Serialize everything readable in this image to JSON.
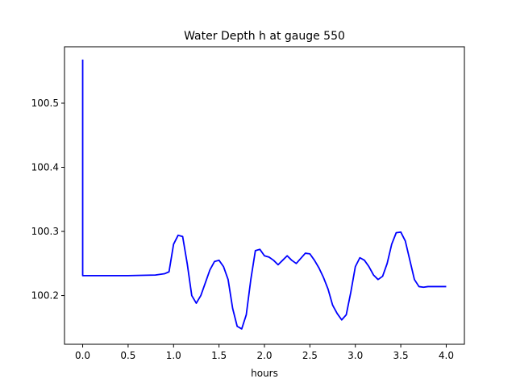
{
  "chart_data": {
    "type": "line",
    "title": "Water Depth h at gauge 550",
    "xlabel": "hours",
    "ylabel": "",
    "xlim": [
      -0.2,
      4.2
    ],
    "ylim": [
      100.124,
      100.588
    ],
    "xticks": [
      0.0,
      0.5,
      1.0,
      1.5,
      2.0,
      2.5,
      3.0,
      3.5,
      4.0
    ],
    "xtick_labels": [
      "0.0",
      "0.5",
      "1.0",
      "1.5",
      "2.0",
      "2.5",
      "3.0",
      "3.5",
      "4.0"
    ],
    "yticks": [
      100.2,
      100.3,
      100.4,
      100.5
    ],
    "ytick_labels": [
      "100.2",
      "100.3",
      "100.4",
      "100.5"
    ],
    "grid": false,
    "color": "#0000ff",
    "series": [
      {
        "name": "",
        "x": [
          0.0,
          0.0,
          0.0,
          0.5,
          0.8,
          0.9,
          0.95,
          1.0,
          1.05,
          1.1,
          1.15,
          1.2,
          1.25,
          1.3,
          1.35,
          1.4,
          1.45,
          1.5,
          1.55,
          1.6,
          1.65,
          1.7,
          1.75,
          1.8,
          1.85,
          1.9,
          1.95,
          2.0,
          2.05,
          2.1,
          2.15,
          2.2,
          2.25,
          2.3,
          2.35,
          2.4,
          2.45,
          2.5,
          2.55,
          2.6,
          2.65,
          2.7,
          2.75,
          2.8,
          2.85,
          2.9,
          2.95,
          3.0,
          3.05,
          3.1,
          3.15,
          3.2,
          3.25,
          3.3,
          3.35,
          3.4,
          3.45,
          3.5,
          3.55,
          3.6,
          3.65,
          3.7,
          3.75,
          3.8,
          3.85,
          3.9,
          3.95,
          4.0
        ],
        "y": [
          100.568,
          100.232,
          100.231,
          100.231,
          100.232,
          100.234,
          100.237,
          100.28,
          100.294,
          100.292,
          100.25,
          100.2,
          100.188,
          100.2,
          100.22,
          100.24,
          100.253,
          100.255,
          100.245,
          100.225,
          100.18,
          100.152,
          100.148,
          100.17,
          100.225,
          100.27,
          100.272,
          100.262,
          100.26,
          100.255,
          100.248,
          100.255,
          100.262,
          100.255,
          100.25,
          100.258,
          100.266,
          100.265,
          100.255,
          100.243,
          100.228,
          100.21,
          100.185,
          100.172,
          100.162,
          100.17,
          100.205,
          100.245,
          100.259,
          100.255,
          100.245,
          100.232,
          100.225,
          100.23,
          100.25,
          100.28,
          100.298,
          100.299,
          100.285,
          100.255,
          100.225,
          100.214,
          100.213,
          100.214,
          100.214,
          100.214,
          100.214,
          100.214
        ]
      }
    ]
  }
}
